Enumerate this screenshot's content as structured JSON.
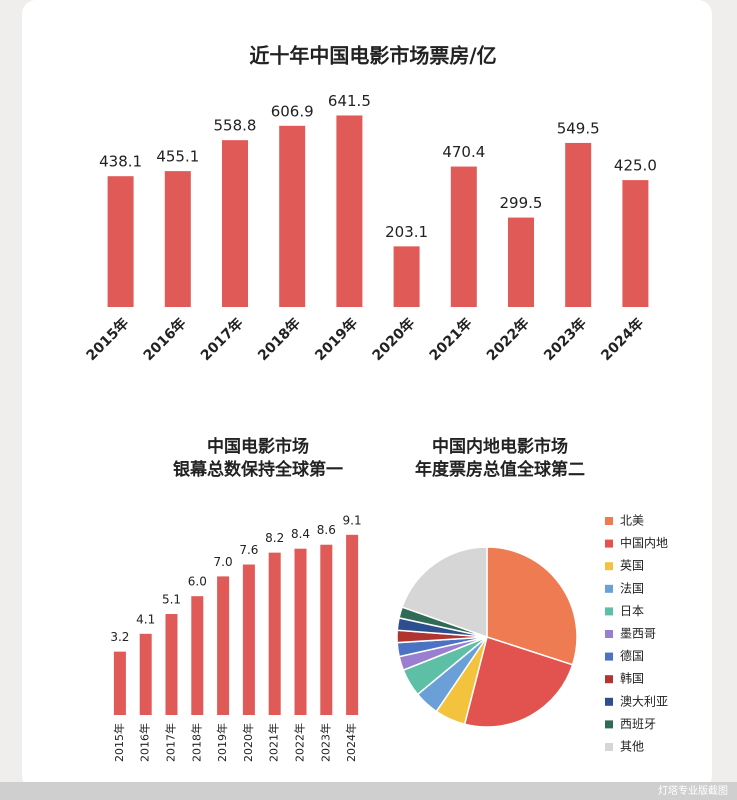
{
  "chart_data": [
    {
      "type": "bar",
      "title": [
        "近十年中国电影市场票房/亿"
      ],
      "categories": [
        "2015年",
        "2016年",
        "2017年",
        "2018年",
        "2019年",
        "2020年",
        "2021年",
        "2022年",
        "2023年",
        "2024年"
      ],
      "values": [
        438.1,
        455.1,
        558.8,
        606.9,
        641.5,
        203.1,
        470.4,
        299.5,
        549.5,
        425
      ],
      "value_labels": [
        "438.1",
        "455.1",
        "558.8",
        "606.9",
        "641.5",
        "203.1",
        "470.4",
        "299.5",
        "549.5",
        "425.0"
      ],
      "color": "#e05a58",
      "ylim": [
        0,
        700
      ]
    },
    {
      "type": "bar",
      "title": [
        "中国电影市场",
        "银幕总数保持全球第一"
      ],
      "categories": [
        "2015年",
        "2016年",
        "2017年",
        "2018年",
        "2019年",
        "2020年",
        "2021年",
        "2022年",
        "2023年",
        "2024年"
      ],
      "values": [
        3.2,
        4.1,
        5.1,
        6,
        7,
        7.6,
        8.2,
        8.4,
        8.6,
        9.1
      ],
      "value_labels": [
        "3.2",
        "4.1",
        "5.1",
        "6.0",
        "7.0",
        "7.6",
        "8.2",
        "8.4",
        "8.6",
        "9.1"
      ],
      "color": "#e05a58",
      "ylim": [
        0,
        10
      ]
    },
    {
      "type": "pie",
      "title": [
        "中国内地电影市场",
        "年度票房总值全球第二"
      ],
      "categories": [
        "北美",
        "中国内地",
        "英国",
        "法国",
        "日本",
        "墨西哥",
        "德国",
        "韩国",
        "澳大利亚",
        "西班牙",
        "其他"
      ],
      "values": [
        30,
        24,
        5.5,
        4.5,
        5,
        2.5,
        2.5,
        2.2,
        2.2,
        2,
        19.6
      ],
      "colors": [
        "#ee7b52",
        "#e2534f",
        "#f3c33e",
        "#6a9fd8",
        "#5cbfa6",
        "#9a7fd1",
        "#4a73c4",
        "#b0342f",
        "#2e4f8f",
        "#2f6b57",
        "#d6d6d6"
      ]
    }
  ],
  "watermark": "灯塔专业版截图"
}
